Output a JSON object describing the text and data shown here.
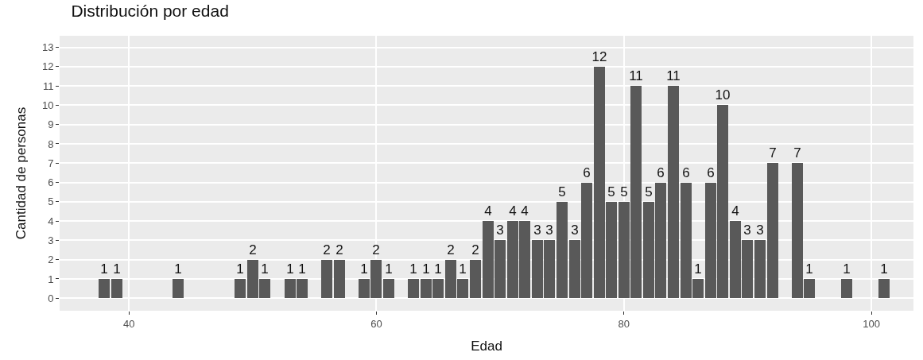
{
  "chart_data": {
    "type": "bar",
    "title": "Distribución por edad",
    "xlabel": "Edad",
    "ylabel": "Cantidad de personas",
    "x": [
      38,
      39,
      44,
      49,
      50,
      51,
      53,
      54,
      56,
      57,
      59,
      60,
      61,
      63,
      64,
      65,
      66,
      67,
      68,
      69,
      70,
      71,
      72,
      73,
      74,
      75,
      76,
      77,
      78,
      79,
      80,
      81,
      82,
      83,
      84,
      85,
      86,
      87,
      88,
      89,
      90,
      91,
      92,
      94,
      95,
      98,
      101
    ],
    "values": [
      1,
      1,
      1,
      1,
      2,
      1,
      1,
      1,
      2,
      2,
      1,
      2,
      1,
      1,
      1,
      1,
      2,
      1,
      2,
      4,
      3,
      4,
      4,
      3,
      3,
      5,
      3,
      6,
      12,
      5,
      5,
      11,
      5,
      6,
      11,
      6,
      1,
      6,
      10,
      4,
      3,
      3,
      7,
      7,
      1,
      1,
      1
    ],
    "color": "#595959",
    "data_labels": true,
    "xlim": [
      34.4,
      103.4
    ],
    "xticks": [
      40,
      60,
      80,
      100
    ],
    "ylim": [
      -0.65,
      13.6
    ],
    "yticks": [
      0,
      1,
      2,
      3,
      4,
      5,
      6,
      7,
      8,
      9,
      10,
      11,
      12,
      13
    ],
    "grid": true,
    "legend": false
  }
}
